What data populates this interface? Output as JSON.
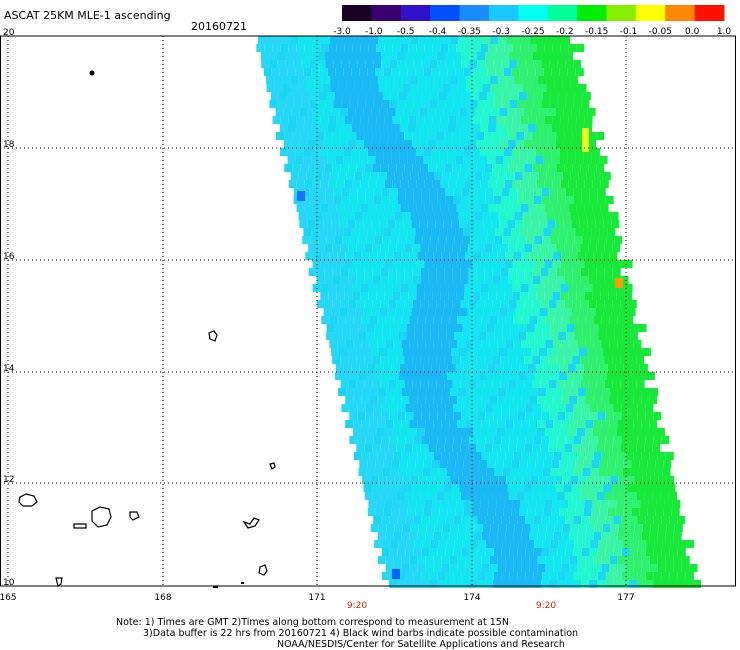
{
  "title": "ASCAT 25KM MLE-1 ascending",
  "date": "20160721",
  "colorbar": {
    "labels": [
      "-3.0",
      "-1.0",
      "-0.5",
      "-0.4",
      "-0.35",
      "-0.3",
      "-0.25",
      "-0.2",
      "-0.15",
      "-0.1",
      "-0.05",
      "0.0",
      "1.0"
    ],
    "colors": [
      "#1a0022",
      "#3a0070",
      "#3010c8",
      "#0050ff",
      "#1a8cff",
      "#19c8ff",
      "#00ffee",
      "#00ff99",
      "#00ee00",
      "#88ee00",
      "#ffff00",
      "#ff8800",
      "#ff1100"
    ]
  },
  "axes": {
    "lat_labels": [
      "20",
      "18",
      "16",
      "14",
      "12",
      "10"
    ],
    "lon_labels": [
      "165",
      "168",
      "171",
      "174",
      "177"
    ],
    "time_labels": [
      "9:20",
      "9:20"
    ]
  },
  "notes": [
    "Note: 1) Times are GMT 2)Times along bottom correspond to measurement at 15N",
    "3)Data buffer is 22 hrs from 20160721 4) Black wind barbs indicate possible contamination",
    "NOAA/NESDIS/Center for Satellite Applications and Research"
  ]
}
